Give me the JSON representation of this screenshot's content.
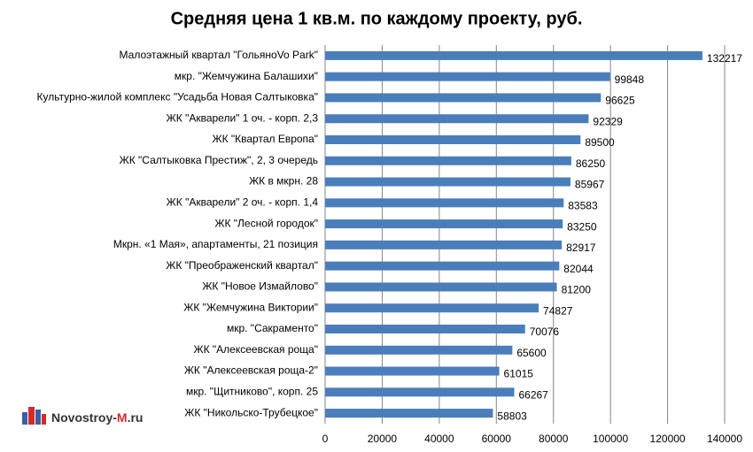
{
  "chart_data": {
    "type": "barh",
    "title": "Средняя цена 1 кв.м. по каждому проекту, руб.",
    "categories": [
      "Малоэтажный квартал \"ГольяноVo Park\"",
      "мкр. \"Жемчужина Балашихи\"",
      "Культурно-жилой комплекс \"Усадьба Новая Салтыковка\"",
      "ЖК \"Акварели\" 1 оч. - корп. 2,3",
      "ЖК \"Квартал Европа\"",
      "ЖК \"Салтыковка Престиж\", 2, 3 очередь",
      "ЖК в мкрн. 28",
      "ЖК \"Акварели\" 2 оч. - корп. 1,4",
      "ЖК \"Лесной городок\"",
      "Мкрн. «1 Мая», апартаменты, 21 позиция",
      "ЖК \"Преображенский квартал\"",
      "ЖК \"Новое Измайлово\"",
      "ЖК \"Жемчужина Виктории\"",
      "мкр. \"Сакраменто\"",
      "ЖК \"Алексеевская роща\"",
      "ЖК \"Алексеевская роща-2\"",
      "мкр. \"Щитниково\", корп. 25",
      "ЖК \"Никольско-Трубецкое\""
    ],
    "values": [
      132217,
      99848,
      96625,
      92329,
      89500,
      86250,
      85967,
      83583,
      83250,
      82917,
      82044,
      81200,
      74827,
      70076,
      65600,
      61015,
      66267,
      58803
    ],
    "color": "#4a7ebb",
    "xlim": [
      0,
      140000
    ],
    "xticks": [
      0,
      20000,
      40000,
      60000,
      80000,
      100000,
      120000,
      140000
    ],
    "grid": true,
    "watermark": [
      "Novostroy-",
      "M",
      ".ru"
    ]
  }
}
